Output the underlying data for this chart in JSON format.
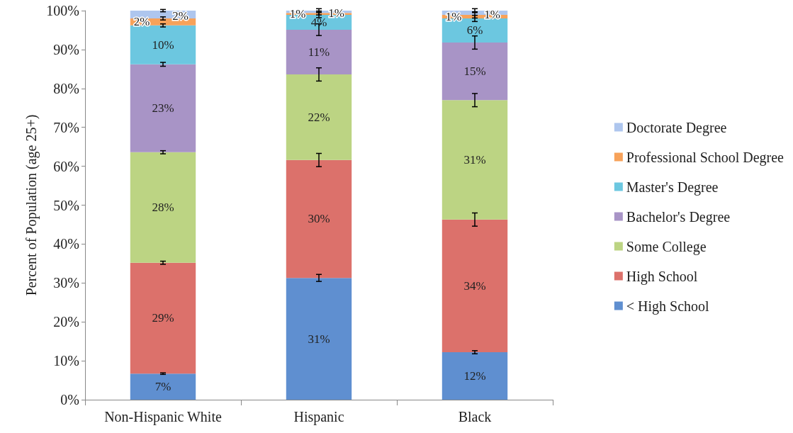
{
  "chart_data": {
    "type": "bar",
    "stacked": true,
    "ylabel": "Percent of Population (age 25+)",
    "categories": [
      "Non-Hispanic White",
      "Hispanic",
      "Black"
    ],
    "ylim": [
      0,
      100
    ],
    "yticks": [
      {
        "value": 0,
        "label": "0%"
      },
      {
        "value": 10,
        "label": "10%"
      },
      {
        "value": 20,
        "label": "20%"
      },
      {
        "value": 30,
        "label": "30%"
      },
      {
        "value": 40,
        "label": "40%"
      },
      {
        "value": 50,
        "label": "50%"
      },
      {
        "value": 60,
        "label": "60%"
      },
      {
        "value": 70,
        "label": "70%"
      },
      {
        "value": 80,
        "label": "80%"
      },
      {
        "value": 90,
        "label": "90%"
      },
      {
        "value": 100,
        "label": "100%"
      }
    ],
    "grid": false,
    "legend": "right",
    "series": [
      {
        "name": "< High School",
        "color": "#5f8fd0",
        "values": [
          6.7,
          31.3,
          12.2
        ],
        "value_labels": [
          "7%",
          "31%",
          "12%"
        ],
        "errors": [
          0.2,
          0.9,
          0.4
        ]
      },
      {
        "name": "High School",
        "color": "#dc716b",
        "values": [
          28.5,
          30.3,
          34.1
        ],
        "value_labels": [
          "29%",
          "30%",
          "34%"
        ],
        "errors": [
          0.4,
          1.7,
          1.7
        ]
      },
      {
        "name": "Some College",
        "color": "#bcd483",
        "values": [
          28.4,
          22.0,
          30.7
        ],
        "value_labels": [
          "28%",
          "22%",
          "31%"
        ],
        "errors": [
          0.4,
          1.7,
          1.7
        ]
      },
      {
        "name": "Bachelor's Degree",
        "color": "#a894c6",
        "values": [
          22.6,
          11.5,
          14.8
        ],
        "value_labels": [
          "23%",
          "11%",
          "15%"
        ],
        "errors": [
          0.5,
          1.5,
          1.7
        ]
      },
      {
        "name": "Master's Degree",
        "color": "#6cc7e0",
        "values": [
          10.0,
          3.8,
          6.2
        ],
        "value_labels": [
          "10%",
          "4%",
          "6%"
        ],
        "errors": [
          0.4,
          0.7,
          0.8
        ]
      },
      {
        "name": "Professional School Degree",
        "color": "#f7a25a",
        "values": [
          1.8,
          0.5,
          0.9
        ],
        "value_labels": [
          "2%",
          "1%",
          "1%"
        ],
        "errors": [
          0.4,
          0.5,
          0.8
        ]
      },
      {
        "name": "Doctorate Degree",
        "color": "#aec6ee",
        "values": [
          2.0,
          0.6,
          1.1
        ],
        "value_labels": [
          "2%",
          "1%",
          "1%"
        ],
        "errors": [
          0.3,
          0.5,
          0.5
        ]
      }
    ]
  }
}
